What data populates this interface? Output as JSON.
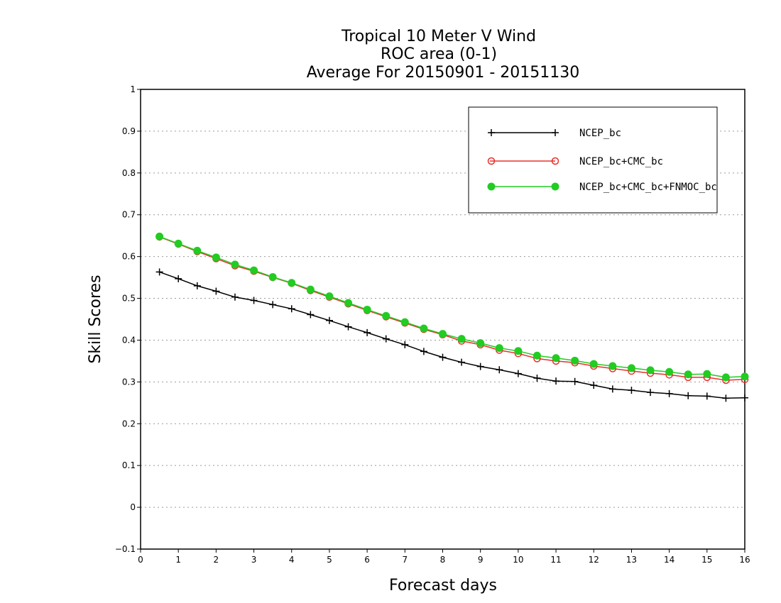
{
  "colors": {
    "background": "#ffffff",
    "axis": "#000000"
  },
  "chart_data": {
    "type": "line",
    "title_lines": [
      "Tropical 10 Meter V Wind",
      "ROC area (0-1)",
      "Average For 20150901 - 20151130"
    ],
    "xlabel": "Forecast days",
    "ylabel": "Skill Scores",
    "xlim": [
      0,
      16
    ],
    "ylim": [
      -0.1,
      1
    ],
    "xticks": [
      0,
      1,
      2,
      3,
      4,
      5,
      6,
      7,
      8,
      9,
      10,
      11,
      12,
      13,
      14,
      15,
      16
    ],
    "yticks": [
      -0.1,
      0,
      0.1,
      0.2,
      0.3,
      0.4,
      0.5,
      0.6,
      0.7,
      0.8,
      0.9,
      1
    ],
    "ytick_labels": [
      "−0.1",
      "0",
      "0.1",
      "0.2",
      "0.3",
      "0.4",
      "0.5",
      "0.6",
      "0.7",
      "0.8",
      "0.9",
      "1"
    ],
    "grid": "horizontal dotted",
    "legend_position": "top-right",
    "x": [
      0.5,
      1,
      1.5,
      2,
      2.5,
      3,
      3.5,
      4,
      4.5,
      5,
      5.5,
      6,
      6.5,
      7,
      7.5,
      8,
      8.5,
      9,
      9.5,
      10,
      10.5,
      11,
      11.5,
      12,
      12.5,
      13,
      13.5,
      14,
      14.5,
      15,
      15.5,
      16
    ],
    "series": [
      {
        "name": "NCEP_bc",
        "color": "#000000",
        "marker": "plus",
        "values": [
          0.563,
          0.547,
          0.53,
          0.517,
          0.503,
          0.495,
          0.485,
          0.475,
          0.461,
          0.447,
          0.432,
          0.418,
          0.403,
          0.389,
          0.373,
          0.359,
          0.347,
          0.337,
          0.329,
          0.32,
          0.309,
          0.302,
          0.301,
          0.292,
          0.283,
          0.28,
          0.275,
          0.272,
          0.267,
          0.266,
          0.261,
          0.262
        ]
      },
      {
        "name": "NCEP_bc+CMC_bc",
        "color": "#e8302c",
        "marker": "open-circle",
        "values": [
          0.647,
          0.63,
          0.612,
          0.595,
          0.578,
          0.565,
          0.55,
          0.536,
          0.519,
          0.503,
          0.487,
          0.471,
          0.456,
          0.441,
          0.426,
          0.413,
          0.398,
          0.389,
          0.376,
          0.368,
          0.356,
          0.35,
          0.346,
          0.338,
          0.332,
          0.326,
          0.321,
          0.317,
          0.311,
          0.311,
          0.304,
          0.306
        ]
      },
      {
        "name": "NCEP_bc+CMC_bc+FNMOC_bc",
        "color": "#22cc22",
        "marker": "filled-circle",
        "values": [
          0.648,
          0.631,
          0.614,
          0.598,
          0.581,
          0.567,
          0.551,
          0.537,
          0.521,
          0.505,
          0.489,
          0.473,
          0.458,
          0.443,
          0.428,
          0.415,
          0.403,
          0.393,
          0.381,
          0.374,
          0.363,
          0.357,
          0.351,
          0.343,
          0.338,
          0.333,
          0.328,
          0.324,
          0.318,
          0.319,
          0.311,
          0.313
        ]
      }
    ]
  }
}
